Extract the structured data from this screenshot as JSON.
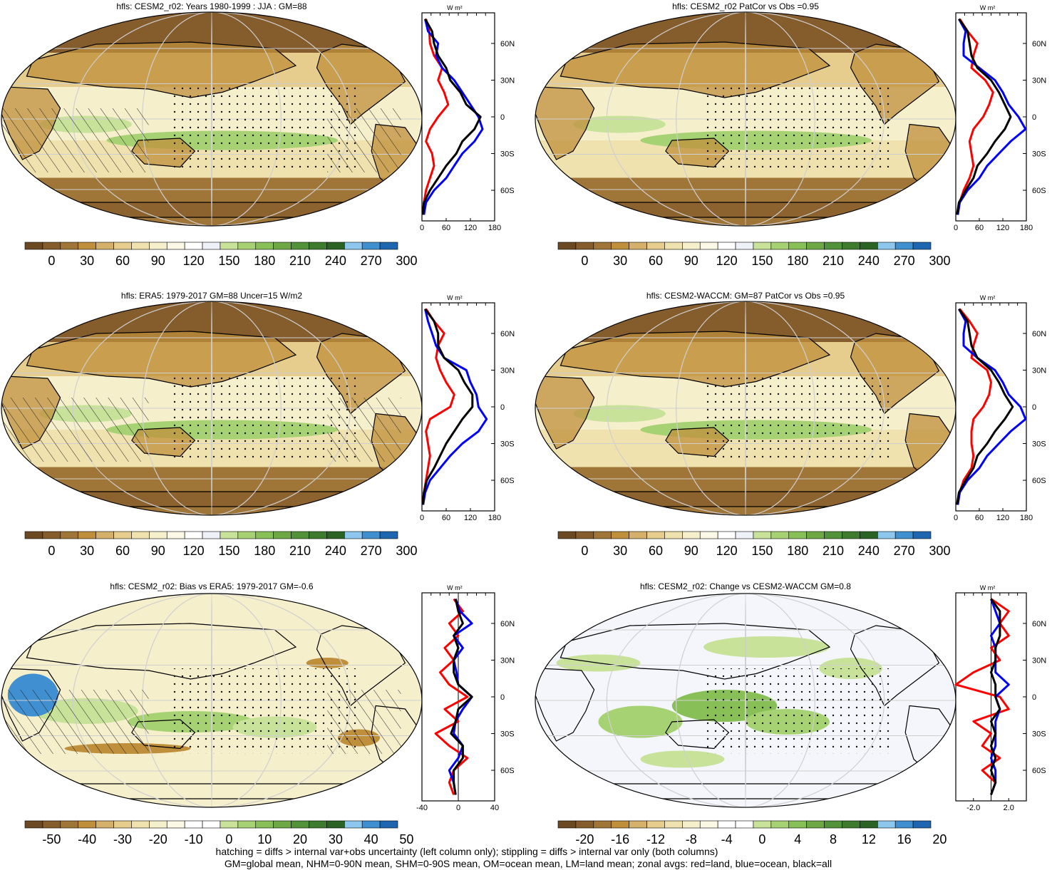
{
  "figure": {
    "panels": [
      {
        "title": "hfls: CESM2_r02: Years 1980-1999 : JJA : GM=88",
        "colorbar": [
          "0",
          "30",
          "60",
          "90",
          "120",
          "150",
          "180",
          "210",
          "240",
          "270",
          "300"
        ],
        "palette": "abs",
        "zonal": {
          "units": "W m²",
          "lat_ticks": [
            "60N",
            "30N",
            "0",
            "30S",
            "60S"
          ],
          "x_ticks": [
            "0",
            "60",
            "120",
            "180"
          ],
          "xlim": [
            0,
            180
          ],
          "zero_line": false
        }
      },
      {
        "title": "hfls: CESM2_r02 PatCor vs Obs =0.95",
        "colorbar": [
          "0",
          "30",
          "60",
          "90",
          "120",
          "150",
          "180",
          "210",
          "240",
          "270",
          "300"
        ],
        "palette": "abs",
        "zonal": {
          "units": "W m²",
          "lat_ticks": [
            "60N",
            "30N",
            "0",
            "30S",
            "60S"
          ],
          "x_ticks": [
            "0",
            "60",
            "120",
            "180"
          ],
          "xlim": [
            0,
            180
          ],
          "zero_line": false
        }
      },
      {
        "title": "hfls: ERA5: 1979-2017 GM=88 Uncer=15 W/m2",
        "colorbar": [
          "0",
          "30",
          "60",
          "90",
          "120",
          "150",
          "180",
          "210",
          "240",
          "270",
          "300"
        ],
        "palette": "abs",
        "zonal": {
          "units": "W m²",
          "lat_ticks": [
            "60N",
            "30N",
            "0",
            "30S",
            "60S"
          ],
          "x_ticks": [
            "0",
            "60",
            "120",
            "180"
          ],
          "xlim": [
            0,
            180
          ],
          "zero_line": false
        }
      },
      {
        "title": "hfls: CESM2-WACCM: GM=87 PatCor vs Obs =0.95",
        "colorbar": [
          "0",
          "30",
          "60",
          "90",
          "120",
          "150",
          "180",
          "210",
          "240",
          "270",
          "300"
        ],
        "palette": "abs",
        "zonal": {
          "units": "W m²",
          "lat_ticks": [
            "60N",
            "30N",
            "0",
            "30S",
            "60S"
          ],
          "x_ticks": [
            "0",
            "60",
            "120",
            "180"
          ],
          "xlim": [
            0,
            180
          ],
          "zero_line": false
        }
      },
      {
        "title": "hfls: CESM2_r02: Bias vs ERA5: 1979-2017 GM=-0.6",
        "colorbar": [
          "-50",
          "-40",
          "-30",
          "-20",
          "-10",
          "0",
          "10",
          "20",
          "30",
          "40",
          "50"
        ],
        "palette": "diff",
        "zonal": {
          "units": "W m²",
          "lat_ticks": [
            "60N",
            "30N",
            "0",
            "30S",
            "60S"
          ],
          "x_ticks": [
            "-40",
            "0",
            "40"
          ],
          "xlim": [
            -40,
            40
          ],
          "zero_line": true
        }
      },
      {
        "title": "hfls: CESM2_r02: Change vs CESM2-WACCM GM=0.8",
        "colorbar": [
          "-20",
          "-16",
          "-12",
          "-8",
          "-4",
          "0",
          "4",
          "8",
          "12",
          "16",
          "20"
        ],
        "palette": "diff",
        "zonal": {
          "units": "W m²",
          "lat_ticks": [
            "60N",
            "30N",
            "0",
            "30S",
            "60S"
          ],
          "x_ticks": [
            "-2.0",
            "2.0"
          ],
          "xlim": [
            -4,
            4
          ],
          "zero_line": true
        }
      }
    ],
    "footer": [
      "hatching = diffs > internal var+obs uncertainty (left column only); stippling = diffs > internal var only (both columns)",
      "GM=global mean, NHM=0-90N mean, SHM=0-90S mean, OM=ocean mean, LM=land mean; zonal avgs: red=land, blue=ocean, black=all"
    ],
    "colors": {
      "land": "#ff0000",
      "ocean": "#0000ff",
      "all": "#000000",
      "palette_abs": [
        "#6b4a23",
        "#855c2c",
        "#a07538",
        "#bf8f3b",
        "#d4b06a",
        "#e6cd8d",
        "#f0e2ae",
        "#f6efcc",
        "#fbf8e6",
        "#ffffff",
        "#eef1f8",
        "#c8e29a",
        "#a7d274",
        "#88c057",
        "#6ea845",
        "#52933a",
        "#3e7b2e",
        "#2b6324",
        "#8dc7ee",
        "#3f8fd1",
        "#1f66b1"
      ],
      "palette_diff": [
        "#6b4a23",
        "#855c2c",
        "#a07538",
        "#bf8f3b",
        "#d4b06a",
        "#e6cd8d",
        "#f0e2ae",
        "#f6efcc",
        "#fbf8e6",
        "#ffffff",
        "#ffffff",
        "#c8e29a",
        "#a7d274",
        "#88c057",
        "#6ea845",
        "#52933a",
        "#3e7b2e",
        "#2b6324",
        "#8dc7ee",
        "#3f8fd1",
        "#1f66b1"
      ]
    }
  },
  "chart_data": [
    {
      "type": "line",
      "title": "",
      "ylabel": "",
      "xlabel": "W m²",
      "y": [
        80,
        70,
        60,
        50,
        40,
        30,
        20,
        10,
        0,
        -10,
        -20,
        -30,
        -40,
        -50,
        -60,
        -70,
        -80
      ],
      "xlim": [
        0,
        180
      ],
      "series": [
        {
          "name": "land",
          "values": [
            10,
            18,
            20,
            30,
            50,
            40,
            55,
            65,
            40,
            20,
            10,
            25,
            30,
            20,
            10,
            5,
            2
          ]
        },
        {
          "name": "ocean",
          "values": [
            8,
            15,
            40,
            35,
            50,
            80,
            100,
            120,
            140,
            150,
            130,
            100,
            80,
            60,
            30,
            10,
            5
          ]
        },
        {
          "name": "all",
          "values": [
            8,
            25,
            30,
            40,
            60,
            70,
            95,
            110,
            145,
            130,
            100,
            85,
            60,
            40,
            20,
            5,
            2
          ]
        }
      ]
    },
    {
      "type": "line",
      "title": "",
      "ylabel": "",
      "xlabel": "W m²",
      "y": [
        80,
        70,
        60,
        50,
        40,
        30,
        20,
        10,
        0,
        -10,
        -20,
        -30,
        -40,
        -50,
        -60,
        -70,
        -80
      ],
      "xlim": [
        0,
        180
      ],
      "series": [
        {
          "name": "land",
          "values": [
            10,
            30,
            55,
            45,
            40,
            75,
            95,
            85,
            70,
            45,
            35,
            40,
            45,
            35,
            20,
            10,
            5
          ]
        },
        {
          "name": "ocean",
          "values": [
            8,
            25,
            20,
            20,
            60,
            100,
            120,
            135,
            160,
            178,
            140,
            110,
            80,
            60,
            30,
            10,
            5
          ]
        },
        {
          "name": "all",
          "values": [
            8,
            30,
            35,
            40,
            55,
            90,
            110,
            125,
            140,
            125,
            100,
            80,
            55,
            45,
            25,
            8,
            3
          ]
        }
      ]
    },
    {
      "type": "line",
      "title": "",
      "ylabel": "",
      "xlabel": "W m²",
      "y": [
        80,
        70,
        60,
        50,
        40,
        30,
        20,
        10,
        0,
        -10,
        -20,
        -30,
        -40,
        -50,
        -60,
        -70,
        -80
      ],
      "xlim": [
        0,
        180
      ],
      "series": [
        {
          "name": "land",
          "values": [
            10,
            30,
            55,
            40,
            35,
            45,
            60,
            80,
            70,
            20,
            10,
            15,
            20,
            15,
            10,
            5,
            2
          ]
        },
        {
          "name": "ocean",
          "values": [
            8,
            15,
            25,
            35,
            55,
            110,
            120,
            135,
            140,
            160,
            140,
            100,
            70,
            45,
            20,
            8,
            3
          ]
        },
        {
          "name": "all",
          "values": [
            8,
            30,
            40,
            40,
            55,
            90,
            105,
            125,
            125,
            100,
            80,
            60,
            45,
            30,
            12,
            5,
            2
          ]
        }
      ]
    },
    {
      "type": "line",
      "title": "",
      "ylabel": "",
      "xlabel": "W m²",
      "y": [
        80,
        70,
        60,
        50,
        40,
        30,
        20,
        10,
        0,
        -10,
        -20,
        -30,
        -40,
        -50,
        -60,
        -70,
        -80
      ],
      "xlim": [
        0,
        180
      ],
      "series": [
        {
          "name": "land",
          "values": [
            10,
            35,
            55,
            45,
            40,
            80,
            90,
            85,
            70,
            45,
            40,
            40,
            45,
            40,
            20,
            10,
            5
          ]
        },
        {
          "name": "ocean",
          "values": [
            8,
            25,
            20,
            20,
            55,
            100,
            120,
            135,
            165,
            178,
            140,
            110,
            80,
            60,
            30,
            10,
            5
          ]
        },
        {
          "name": "all",
          "values": [
            8,
            30,
            35,
            40,
            55,
            90,
            110,
            125,
            145,
            125,
            100,
            80,
            55,
            45,
            25,
            8,
            3
          ]
        }
      ]
    },
    {
      "type": "line",
      "title": "",
      "ylabel": "",
      "xlabel": "W m²",
      "y": [
        80,
        70,
        60,
        50,
        40,
        30,
        20,
        10,
        0,
        -10,
        -20,
        -30,
        -40,
        -50,
        -60,
        -70,
        -80
      ],
      "xlim": [
        -40,
        40
      ],
      "series": [
        {
          "name": "land",
          "values": [
            -5,
            5,
            -10,
            0,
            -15,
            -5,
            -20,
            -10,
            10,
            -15,
            0,
            -25,
            -10,
            10,
            -5,
            -10,
            -5
          ]
        },
        {
          "name": "ocean",
          "values": [
            -3,
            2,
            15,
            -5,
            5,
            -5,
            -2,
            0,
            15,
            5,
            -3,
            -5,
            5,
            0,
            -10,
            -5,
            -3
          ]
        },
        {
          "name": "all",
          "values": [
            -3,
            0,
            5,
            -5,
            0,
            -5,
            -5,
            0,
            15,
            0,
            -3,
            -8,
            5,
            5,
            -5,
            -5,
            -3
          ]
        }
      ]
    },
    {
      "type": "line",
      "title": "",
      "ylabel": "",
      "xlabel": "W m²",
      "y": [
        80,
        70,
        60,
        50,
        40,
        30,
        20,
        10,
        0,
        -10,
        -20,
        -30,
        -40,
        -50,
        -60,
        -70,
        -80
      ],
      "xlim": [
        -4,
        4
      ],
      "series": [
        {
          "name": "land",
          "values": [
            0,
            2,
            1,
            2,
            0,
            1,
            -2,
            -4,
            1,
            2,
            -2,
            0,
            -1,
            1,
            -1,
            0.5,
            0
          ]
        },
        {
          "name": "ocean",
          "values": [
            0,
            0.5,
            1,
            0,
            0.5,
            0.5,
            0.5,
            2,
            0.5,
            1,
            0.5,
            0.5,
            0.5,
            0,
            0.5,
            0.5,
            0
          ]
        },
        {
          "name": "all",
          "values": [
            0,
            1,
            1,
            1,
            0.5,
            0.5,
            0,
            0.5,
            0.5,
            1,
            0,
            0.5,
            0,
            0.5,
            0,
            0.5,
            0
          ]
        }
      ]
    }
  ]
}
